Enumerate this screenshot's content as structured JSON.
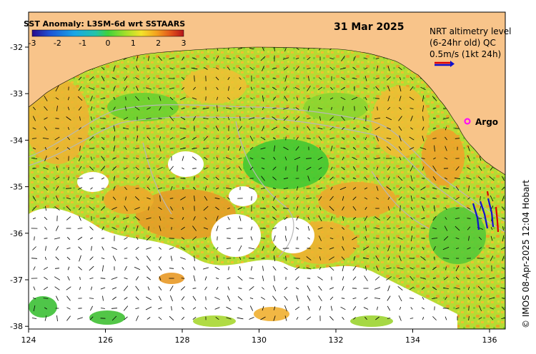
{
  "title": "SST Anomaly: L3SM-6d wrt SSTAARS",
  "date": "31 Mar 2025",
  "colorbar": {
    "ticks": [
      "-3",
      "-2",
      "-1",
      "0",
      "1",
      "2",
      "3"
    ],
    "colors": [
      "#2a0a8c",
      "#1e55d6",
      "#1aa6e6",
      "#22c4a8",
      "#3fd23a",
      "#a6e02a",
      "#f4e32a",
      "#f4a21e",
      "#e0501a",
      "#b4141a"
    ]
  },
  "legend": {
    "line1": "NRT altimetry level",
    "line1b": "(6-24hr old) QC",
    "line2": "0.5m/s (1kt 24h)",
    "argo": "Argo"
  },
  "credit": "© IMOS 08-Apr-2025 12:04 Hobart",
  "x_ticks": [
    "124",
    "126",
    "128",
    "130",
    "132",
    "134",
    "136"
  ],
  "y_ticks": [
    "-32",
    "-33",
    "-34",
    "-35",
    "-36",
    "-37",
    "-38"
  ],
  "colors": {
    "land": "#f8c48a",
    "ocean_base": "#a8d830",
    "warm": "#f0b030",
    "cool": "#30c030",
    "argo_marker": "#ff00ff",
    "arrow_red": "#dd0000",
    "arrow_blue": "#1010cc"
  }
}
